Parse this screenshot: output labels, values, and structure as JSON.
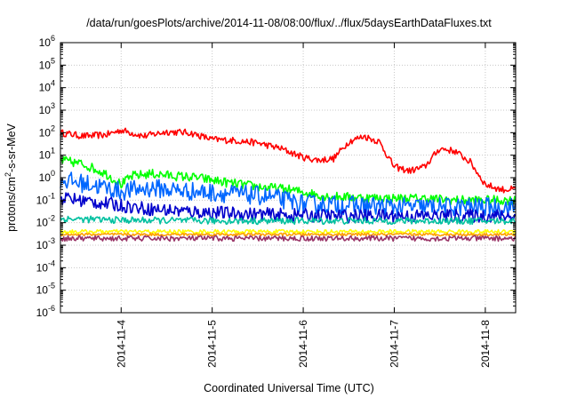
{
  "chart_data": {
    "type": "line",
    "title": "/data/run/goesPlots/archive/2014-11-08/08:00/flux/../flux/5daysEarthDataFluxes.txt",
    "xlabel": "Coordinated Universal Time (UTC)",
    "ylabel_parts": [
      "protons/cm",
      "2",
      "-s-sr-MeV"
    ],
    "y_scale": "log",
    "ylim": [
      1e-06,
      1000000.0
    ],
    "y_ticks": [
      {
        "base": "10",
        "exp": "-6",
        "value": -6
      },
      {
        "base": "10",
        "exp": "-5",
        "value": -5
      },
      {
        "base": "10",
        "exp": "-4",
        "value": -4
      },
      {
        "base": "10",
        "exp": "-3",
        "value": -3
      },
      {
        "base": "10",
        "exp": "-2",
        "value": -2
      },
      {
        "base": "10",
        "exp": "-1",
        "value": -1
      },
      {
        "base": "10",
        "exp": "0",
        "value": 0
      },
      {
        "base": "10",
        "exp": "1",
        "value": 1
      },
      {
        "base": "10",
        "exp": "2",
        "value": 2
      },
      {
        "base": "10",
        "exp": "3",
        "value": 3
      },
      {
        "base": "10",
        "exp": "4",
        "value": 4
      },
      {
        "base": "10",
        "exp": "5",
        "value": 5
      },
      {
        "base": "10",
        "exp": "6",
        "value": 6
      }
    ],
    "xlim": [
      "2014-11-03T08:00",
      "2014-11-08T08:00"
    ],
    "x_ticks": [
      {
        "label": "2014-11-4",
        "date": "2014-11-04T00:00"
      },
      {
        "label": "2014-11-5",
        "date": "2014-11-05T00:00"
      },
      {
        "label": "2014-11-6",
        "date": "2014-11-06T00:00"
      },
      {
        "label": "2014-11-7",
        "date": "2014-11-07T00:00"
      },
      {
        "label": "2014-11-8",
        "date": "2014-11-08T00:00"
      }
    ],
    "grid": true,
    "legend": "none",
    "series": [
      {
        "color": "#ff0000",
        "noise": 0.05,
        "x": [
          "2014-11-03T08:00",
          "2014-11-03T14:00",
          "2014-11-03T20:00",
          "2014-11-04T00:00",
          "2014-11-04T06:00",
          "2014-11-04T12:00",
          "2014-11-04T18:00",
          "2014-11-05T00:00",
          "2014-11-05T06:00",
          "2014-11-05T12:00",
          "2014-11-05T18:00",
          "2014-11-06T00:00",
          "2014-11-06T04:00",
          "2014-11-06T08:00",
          "2014-11-06T12:00",
          "2014-11-06T16:00",
          "2014-11-06T20:00",
          "2014-11-07T00:00",
          "2014-11-07T04:00",
          "2014-11-07T08:00",
          "2014-11-07T12:00",
          "2014-11-07T16:00",
          "2014-11-07T20:00",
          "2014-11-08T00:00",
          "2014-11-08T04:00",
          "2014-11-08T08:00"
        ],
        "y": [
          100,
          70,
          80,
          130,
          70,
          110,
          100,
          50,
          45,
          35,
          20,
          8,
          6,
          7,
          40,
          70,
          40,
          3,
          2,
          3,
          20,
          15,
          5,
          0.5,
          0.3,
          0.3
        ]
      },
      {
        "color": "#00ff00",
        "noise": 0.07,
        "x": [
          "2014-11-03T08:00",
          "2014-11-03T14:00",
          "2014-11-03T20:00",
          "2014-11-04T00:00",
          "2014-11-04T03:00",
          "2014-11-04T08:00",
          "2014-11-04T14:00",
          "2014-11-04T20:00",
          "2014-11-05T04:00",
          "2014-11-05T12:00",
          "2014-11-05T20:00",
          "2014-11-06T06:00",
          "2014-11-06T16:00",
          "2014-11-07T00:00",
          "2014-11-07T08:00",
          "2014-11-07T16:00",
          "2014-11-08T00:00",
          "2014-11-08T08:00"
        ],
        "y": [
          6,
          4,
          1.5,
          0.5,
          1.2,
          1.5,
          1.2,
          1,
          0.6,
          0.4,
          0.3,
          0.15,
          0.13,
          0.12,
          0.12,
          0.1,
          0.1,
          0.1
        ]
      },
      {
        "color": "#0066ff",
        "noise": 0.14,
        "x": [
          "2014-11-03T08:00",
          "2014-11-03T16:00",
          "2014-11-04T00:00",
          "2014-11-04T08:00",
          "2014-11-04T18:00",
          "2014-11-05T04:00",
          "2014-11-05T14:00",
          "2014-11-06T00:00",
          "2014-11-06T12:00",
          "2014-11-07T00:00",
          "2014-11-07T12:00",
          "2014-11-08T00:00",
          "2014-11-08T08:00"
        ],
        "y": [
          0.8,
          0.5,
          0.25,
          0.35,
          0.25,
          0.2,
          0.15,
          0.07,
          0.06,
          0.05,
          0.05,
          0.05,
          0.05
        ]
      },
      {
        "color": "#0000cc",
        "noise": 0.1,
        "x": [
          "2014-11-03T08:00",
          "2014-11-03T20:00",
          "2014-11-04T08:00",
          "2014-11-04T20:00",
          "2014-11-05T08:00",
          "2014-11-05T20:00",
          "2014-11-06T08:00",
          "2014-11-07T00:00",
          "2014-11-08T08:00"
        ],
        "y": [
          0.13,
          0.07,
          0.04,
          0.03,
          0.025,
          0.022,
          0.02,
          0.02,
          0.02
        ]
      },
      {
        "color": "#00c0a0",
        "noise": 0.05,
        "x": [
          "2014-11-03T08:00",
          "2014-11-04T00:00",
          "2014-11-05T00:00",
          "2014-11-06T00:00",
          "2014-11-07T00:00",
          "2014-11-08T08:00"
        ],
        "y": [
          0.015,
          0.013,
          0.012,
          0.012,
          0.012,
          0.012
        ]
      },
      {
        "color": "#ffff00",
        "noise": 0.03,
        "x": [
          "2014-11-03T08:00",
          "2014-11-08T08:00"
        ],
        "y": [
          0.004,
          0.004
        ]
      },
      {
        "color": "#ffa000",
        "noise": 0.02,
        "x": [
          "2014-11-03T08:00",
          "2014-11-08T08:00"
        ],
        "y": [
          0.003,
          0.003
        ]
      },
      {
        "color": "#993366",
        "noise": 0.04,
        "x": [
          "2014-11-03T08:00",
          "2014-11-08T08:00"
        ],
        "y": [
          0.002,
          0.002
        ]
      }
    ]
  }
}
